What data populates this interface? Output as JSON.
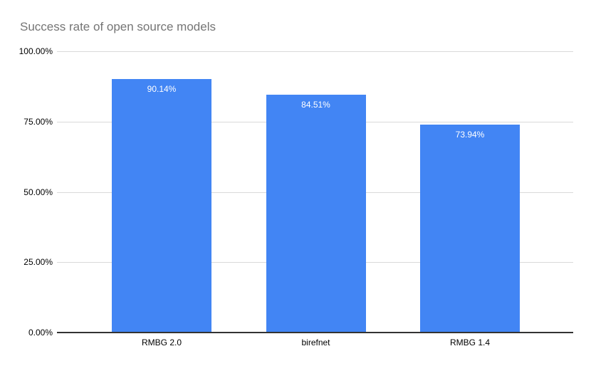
{
  "title": "Success rate of open source models",
  "colors": {
    "background": "#ffffff",
    "bar": "#4285f4",
    "title_text": "#757575",
    "axis_label_text": "#000000",
    "gridline": "#d9d9d9",
    "axis_line": "#333333",
    "bar_label_text": "#ffffff"
  },
  "chart_data": {
    "type": "bar",
    "title": "Success rate of open source models",
    "categories": [
      "RMBG 2.0",
      "birefnet",
      "RMBG 1.4"
    ],
    "values": [
      90.14,
      84.51,
      73.94
    ],
    "value_labels": [
      "90.14%",
      "84.51%",
      "73.94%"
    ],
    "xlabel": "",
    "ylabel": "",
    "ylim": [
      0,
      100
    ],
    "y_ticks": [
      0,
      25,
      50,
      75,
      100
    ],
    "y_tick_labels": [
      "0.00%",
      "25.00%",
      "50.00%",
      "75.00%",
      "100.00%"
    ],
    "grid": true,
    "legend_position": "none",
    "bar_label_position": "inside-top"
  }
}
